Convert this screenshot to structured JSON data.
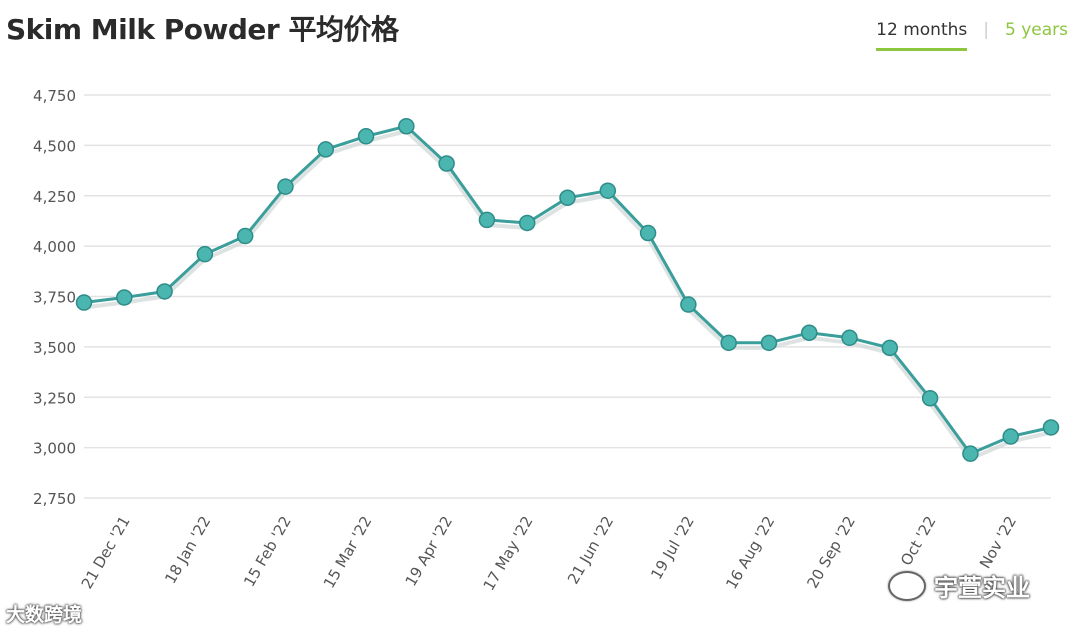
{
  "header": {
    "title": "Skim Milk Powder 平均价格"
  },
  "range_tabs": [
    {
      "label": "12 months",
      "active": true
    },
    {
      "label": "5 years",
      "active": false
    }
  ],
  "watermarks": {
    "left": "大数跨境",
    "right": "宇萱实业"
  },
  "colors": {
    "line": "#3a9e9b",
    "marker": "#4bb5b0",
    "accent": "#8dc63f",
    "grid": "#e3e3e3"
  },
  "chart_data": {
    "type": "line",
    "title": "Skim Milk Powder 平均价格",
    "xlabel": "",
    "ylabel": "",
    "ylim": [
      2750,
      4750
    ],
    "yticks": [
      2750,
      3000,
      3250,
      3500,
      3750,
      4000,
      4250,
      4500,
      4750
    ],
    "ytick_labels": [
      "2,750",
      "3,000",
      "3,250",
      "3,500",
      "3,750",
      "4,000",
      "4,250",
      "4,500",
      "4,750"
    ],
    "grid": true,
    "x_tick_labels": [
      {
        "label": "21 Dec '21",
        "index": 1
      },
      {
        "label": "18 Jan '22",
        "index": 3
      },
      {
        "label": "15 Feb '22",
        "index": 5
      },
      {
        "label": "15 Mar '22",
        "index": 7
      },
      {
        "label": "19 Apr '22",
        "index": 9
      },
      {
        "label": "17 May '22",
        "index": 11
      },
      {
        "label": "21 Jun '22",
        "index": 13
      },
      {
        "label": "19 Jul '22",
        "index": 15
      },
      {
        "label": "16 Aug '22",
        "index": 17
      },
      {
        "label": "20 Sep '22",
        "index": 19
      },
      {
        "label": "Oct '22",
        "index": 21
      },
      {
        "label": "Nov '22",
        "index": 23
      }
    ],
    "series": [
      {
        "values": [
          3720,
          3745,
          3775,
          3960,
          4050,
          4295,
          4480,
          4545,
          4595,
          4410,
          4130,
          4115,
          4240,
          4275,
          4065,
          3710,
          3520,
          3520,
          3570,
          3545,
          3495,
          3245,
          2970,
          3055,
          3100
        ]
      }
    ]
  }
}
